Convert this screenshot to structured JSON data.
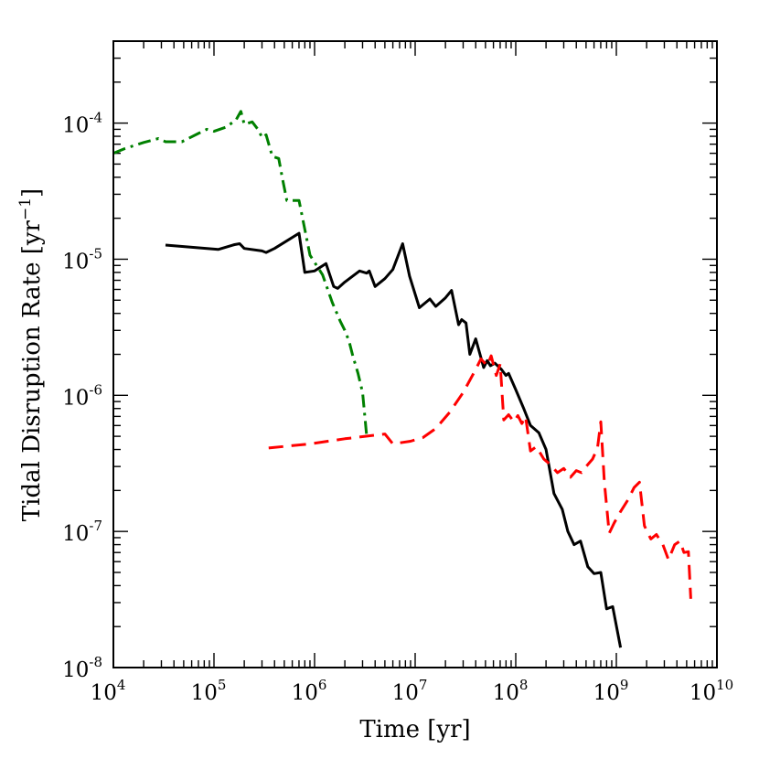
{
  "chart_data": {
    "type": "line",
    "title": "",
    "xlabel": "Time [yr]",
    "ylabel_main": "Tidal Disruption Rate [yr",
    "ylabel_sup": "−1",
    "ylabel_close": "]",
    "xscale": "log",
    "yscale": "log",
    "xlim": [
      10000,
      10000000000
    ],
    "ylim": [
      1e-08,
      0.0004
    ],
    "x_ticks": [
      {
        "value": 10000,
        "base": "10",
        "exp": "4"
      },
      {
        "value": 100000,
        "base": "10",
        "exp": "5"
      },
      {
        "value": 1000000,
        "base": "10",
        "exp": "6"
      },
      {
        "value": 10000000,
        "base": "10",
        "exp": "7"
      },
      {
        "value": 100000000,
        "base": "10",
        "exp": "8"
      },
      {
        "value": 1000000000,
        "base": "10",
        "exp": "9"
      },
      {
        "value": 10000000000,
        "base": "10",
        "exp": "10"
      }
    ],
    "y_ticks": [
      {
        "value": 1e-08,
        "base": "10",
        "exp": "-8"
      },
      {
        "value": 1e-07,
        "base": "10",
        "exp": "-7"
      },
      {
        "value": 1e-06,
        "base": "10",
        "exp": "-6"
      },
      {
        "value": 1e-05,
        "base": "10",
        "exp": "-5"
      },
      {
        "value": 0.0001,
        "base": "10",
        "exp": "-4"
      }
    ],
    "series": [
      {
        "name": "solid",
        "color": "#000000",
        "style": "solid",
        "points": [
          [
            33000,
            1.27e-05
          ],
          [
            110000,
            1.18e-05
          ],
          [
            160000,
            1.28e-05
          ],
          [
            180000,
            1.3e-05
          ],
          [
            200000,
            1.2e-05
          ],
          [
            300000,
            1.15e-05
          ],
          [
            330000,
            1.12e-05
          ],
          [
            400000,
            1.2e-05
          ],
          [
            700000,
            1.55e-05
          ],
          [
            800000,
            8e-06
          ],
          [
            1000000,
            8.2e-06
          ],
          [
            1300000,
            9.3e-06
          ],
          [
            1550000,
            6.3e-06
          ],
          [
            1700000,
            6.1e-06
          ],
          [
            2000000,
            6.8e-06
          ],
          [
            2800000,
            8.2e-06
          ],
          [
            3300000,
            7.9e-06
          ],
          [
            3500000,
            8.2e-06
          ],
          [
            4000000,
            6.3e-06
          ],
          [
            5000000,
            7.2e-06
          ],
          [
            6000000,
            8.4e-06
          ],
          [
            7500000,
            1.3e-05
          ],
          [
            8800000,
            7.5e-06
          ],
          [
            11000000,
            4.4e-06
          ],
          [
            14000000,
            5.1e-06
          ],
          [
            16000000,
            4.5e-06
          ],
          [
            20000000,
            5.2e-06
          ],
          [
            23000000,
            5.9e-06
          ],
          [
            27000000,
            3.3e-06
          ],
          [
            29000000,
            3.6e-06
          ],
          [
            32000000,
            3.4e-06
          ],
          [
            35000000,
            2e-06
          ],
          [
            40000000,
            2.6e-06
          ],
          [
            48000000,
            1.6e-06
          ],
          [
            52000000,
            1.8e-06
          ],
          [
            56000000,
            1.65e-06
          ],
          [
            62000000,
            1.72e-06
          ],
          [
            72000000,
            1.55e-06
          ],
          [
            80000000,
            1.4e-06
          ],
          [
            85000000,
            1.45e-06
          ],
          [
            100000000,
            1.1e-06
          ],
          [
            120000000,
            8e-07
          ],
          [
            140000000,
            6e-07
          ],
          [
            170000000,
            5.3e-07
          ],
          [
            200000000,
            4e-07
          ],
          [
            240000000,
            1.9e-07
          ],
          [
            290000000,
            1.45e-07
          ],
          [
            330000000,
            1e-07
          ],
          [
            380000000,
            8e-08
          ],
          [
            440000000,
            8.5e-08
          ],
          [
            520000000,
            5.5e-08
          ],
          [
            600000000,
            4.9e-08
          ],
          [
            700000000,
            5e-08
          ],
          [
            800000000,
            2.7e-08
          ],
          [
            920000000,
            2.8e-08
          ],
          [
            1100000000,
            1.4e-08
          ]
        ]
      },
      {
        "name": "dashed",
        "color": "#ff0000",
        "style": "dashed",
        "points": [
          [
            350000,
            4.1e-07
          ],
          [
            900000,
            4.4e-07
          ],
          [
            2000000,
            4.8e-07
          ],
          [
            5000000,
            5.2e-07
          ],
          [
            6000000,
            4.4e-07
          ],
          [
            9000000,
            4.6e-07
          ],
          [
            12000000,
            4.9e-07
          ],
          [
            16000000,
            5.7e-07
          ],
          [
            22000000,
            7.5e-07
          ],
          [
            30000000,
            1.05e-06
          ],
          [
            40000000,
            1.55e-06
          ],
          [
            45000000,
            1.85e-06
          ],
          [
            52000000,
            1.65e-06
          ],
          [
            57000000,
            1.95e-06
          ],
          [
            64000000,
            1.4e-06
          ],
          [
            70000000,
            1.7e-06
          ],
          [
            76000000,
            6.6e-07
          ],
          [
            85000000,
            7.2e-07
          ],
          [
            96000000,
            6.4e-07
          ],
          [
            105000000,
            7.1e-07
          ],
          [
            115000000,
            6.2e-07
          ],
          [
            125000000,
            7e-07
          ],
          [
            140000000,
            3.9e-07
          ],
          [
            160000000,
            4.2e-07
          ],
          [
            190000000,
            3.4e-07
          ],
          [
            220000000,
            3.1e-07
          ],
          [
            260000000,
            2.7e-07
          ],
          [
            300000000,
            2.9e-07
          ],
          [
            350000000,
            2.5e-07
          ],
          [
            400000000,
            2.8e-07
          ],
          [
            450000000,
            2.7e-07
          ],
          [
            520000000,
            3.1e-07
          ],
          [
            580000000,
            3.4e-07
          ],
          [
            650000000,
            4.1e-07
          ],
          [
            700000000,
            6.4e-07
          ],
          [
            760000000,
            2.3e-07
          ],
          [
            850000000,
            9.7e-08
          ],
          [
            950000000,
            1.15e-07
          ],
          [
            1100000000,
            1.4e-07
          ],
          [
            1300000000,
            1.7e-07
          ],
          [
            1500000000,
            2.1e-07
          ],
          [
            1700000000,
            2.3e-07
          ],
          [
            1900000000,
            1.1e-07
          ],
          [
            2200000000,
            8.8e-08
          ],
          [
            2500000000,
            9.5e-08
          ],
          [
            2900000000,
            8e-08
          ],
          [
            3300000000,
            6.2e-08
          ],
          [
            3800000000,
            8e-08
          ],
          [
            4300000000,
            8.5e-08
          ],
          [
            4700000000,
            7e-08
          ],
          [
            5200000000,
            7.1e-08
          ],
          [
            5500000000,
            3.2e-08
          ]
        ]
      },
      {
        "name": "dash-dot",
        "color": "#008000",
        "style": "dashdot",
        "points": [
          [
            10000,
            6e-05
          ],
          [
            13000,
            6.5e-05
          ],
          [
            20000,
            7.2e-05
          ],
          [
            28000,
            7.7e-05
          ],
          [
            33000,
            7.3e-05
          ],
          [
            48000,
            7.3e-05
          ],
          [
            70000,
            8.4e-05
          ],
          [
            85000,
            9e-05
          ],
          [
            100000,
            8.7e-05
          ],
          [
            130000,
            9.3e-05
          ],
          [
            165000,
            0.000105
          ],
          [
            185000,
            0.000122
          ],
          [
            200000,
            9.8e-05
          ],
          [
            240000,
            0.000102
          ],
          [
            280000,
            8.8e-05
          ],
          [
            300000,
            7.8e-05
          ],
          [
            330000,
            8.2e-05
          ],
          [
            380000,
            5.7e-05
          ],
          [
            440000,
            5.5e-05
          ],
          [
            480000,
            3.9e-05
          ],
          [
            530000,
            2.7e-05
          ],
          [
            700000,
            2.7e-05
          ],
          [
            900000,
            1.07e-05
          ],
          [
            1200000,
            7.7e-06
          ],
          [
            1500000,
            4.8e-06
          ],
          [
            1800000,
            3.5e-06
          ],
          [
            2000000,
            3e-06
          ],
          [
            2200000,
            2.5e-06
          ],
          [
            2400000,
            1.95e-06
          ],
          [
            2700000,
            1.45e-06
          ],
          [
            3000000,
            1.05e-06
          ],
          [
            3300000,
            5e-07
          ]
        ]
      }
    ]
  }
}
